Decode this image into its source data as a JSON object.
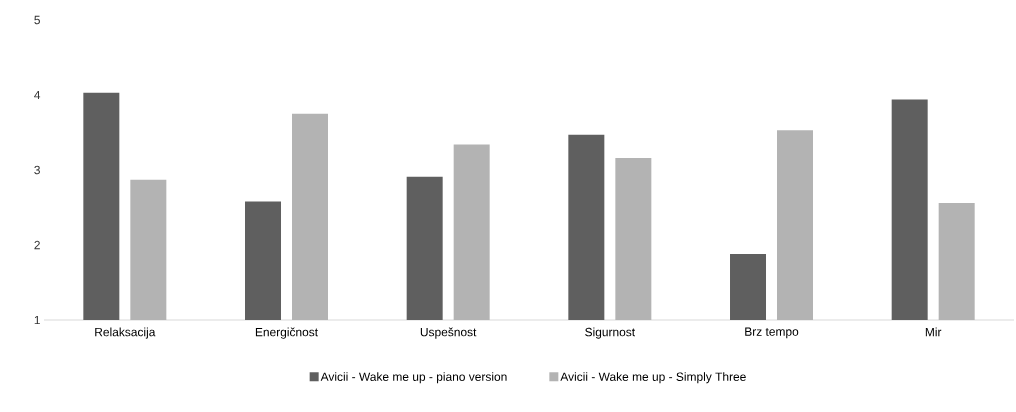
{
  "chart_data": {
    "type": "bar",
    "categories": [
      "Relaksacija",
      "Energičnost",
      "Uspešnost",
      "Sigurnost",
      "Brz tempo",
      "Mir"
    ],
    "series": [
      {
        "name": "Avicii - Wake me up - piano version",
        "color": "#5f5f5f",
        "values": [
          4.03,
          2.58,
          2.91,
          3.47,
          1.88,
          3.94
        ]
      },
      {
        "name": "Avicii - Wake me up - Simply Three",
        "color": "#b3b3b3",
        "values": [
          2.87,
          3.75,
          3.34,
          3.16,
          3.53,
          2.56
        ]
      }
    ],
    "ylim": [
      1,
      5
    ],
    "yticks": [
      1,
      2,
      3,
      4,
      5
    ],
    "legend": "bottom"
  }
}
